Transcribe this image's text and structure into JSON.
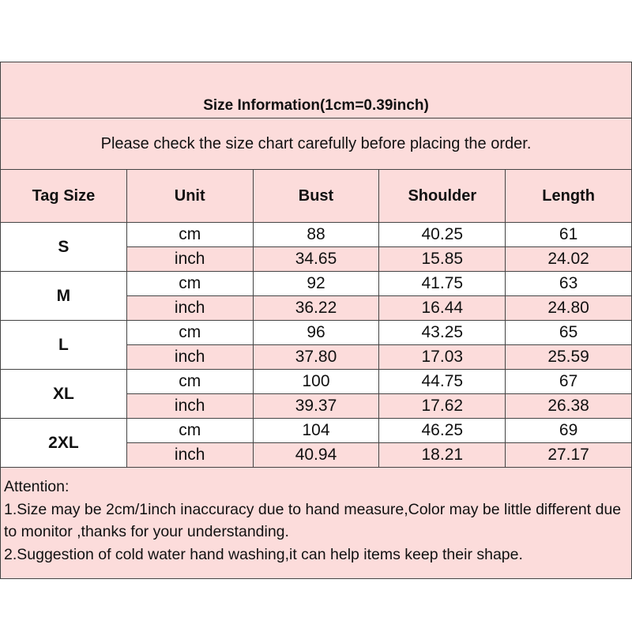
{
  "title": "Size Information(1cm=0.39inch)",
  "subtitle": "Please check the size chart carefully before placing the order.",
  "headers": [
    "Tag Size",
    "Unit",
    "Bust",
    "Shoulder",
    "Length"
  ],
  "rows": [
    {
      "size": "S",
      "cm": {
        "unit": "cm",
        "bust": "88",
        "shoulder": "40.25",
        "length": "61"
      },
      "inch": {
        "unit": "inch",
        "bust": "34.65",
        "shoulder": "15.85",
        "length": "24.02"
      }
    },
    {
      "size": "M",
      "cm": {
        "unit": "cm",
        "bust": "92",
        "shoulder": "41.75",
        "length": "63"
      },
      "inch": {
        "unit": "inch",
        "bust": "36.22",
        "shoulder": "16.44",
        "length": "24.80"
      }
    },
    {
      "size": "L",
      "cm": {
        "unit": "cm",
        "bust": "96",
        "shoulder": "43.25",
        "length": "65"
      },
      "inch": {
        "unit": "inch",
        "bust": "37.80",
        "shoulder": "17.03",
        "length": "25.59"
      }
    },
    {
      "size": "XL",
      "cm": {
        "unit": "cm",
        "bust": "100",
        "shoulder": "44.75",
        "length": "67"
      },
      "inch": {
        "unit": "inch",
        "bust": "39.37",
        "shoulder": "17.62",
        "length": "26.38"
      }
    },
    {
      "size": "2XL",
      "cm": {
        "unit": "cm",
        "bust": "104",
        "shoulder": "46.25",
        "length": "69"
      },
      "inch": {
        "unit": "inch",
        "bust": "40.94",
        "shoulder": "18.21",
        "length": "27.17"
      }
    }
  ],
  "notes": [
    "Attention:",
    "1.Size may be 2cm/1inch inaccuracy due to hand measure,Color may be little different due to monitor ,thanks for your understanding.",
    "2.Suggestion of cold water hand washing,it can help items keep their shape."
  ],
  "colors": {
    "pink": "#fcdcdb",
    "border": "#444444"
  }
}
